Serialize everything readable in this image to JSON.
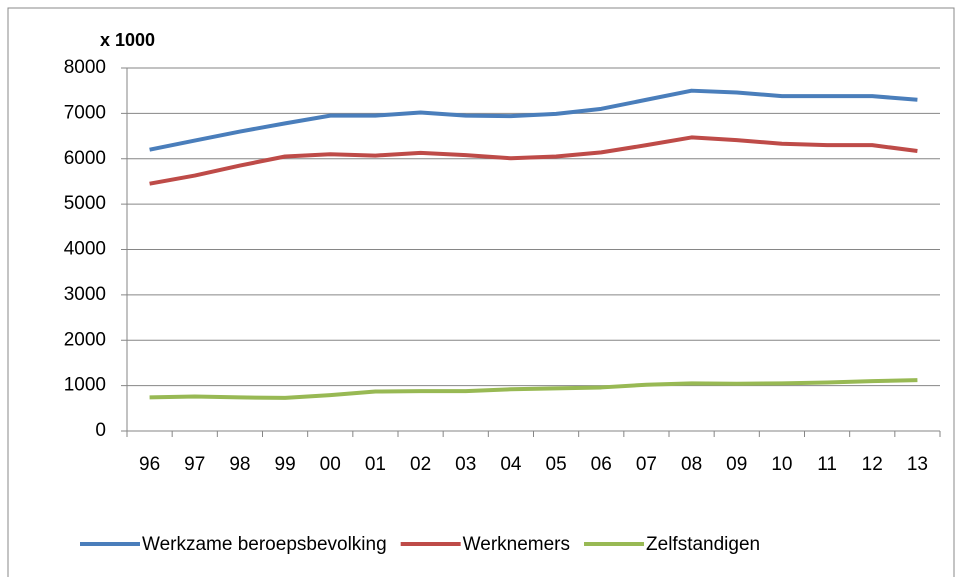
{
  "chart_data": {
    "type": "line",
    "y_unit_label": "x 1000",
    "categories": [
      "96",
      "97",
      "98",
      "99",
      "00",
      "01",
      "02",
      "03",
      "04",
      "05",
      "06",
      "07",
      "08",
      "09",
      "10",
      "11",
      "12",
      "13"
    ],
    "series": [
      {
        "name": "Werkzame beroepsbevolking",
        "color": "#4a7ebb",
        "values": [
          6200,
          6400,
          6600,
          6780,
          6950,
          6950,
          7020,
          6950,
          6940,
          6990,
          7100,
          7300,
          7500,
          7460,
          7380,
          7380,
          7380,
          7300
        ]
      },
      {
        "name": "Werknemers",
        "color": "#be4b48",
        "values": [
          5450,
          5630,
          5850,
          6050,
          6100,
          6070,
          6130,
          6080,
          6010,
          6050,
          6140,
          6300,
          6470,
          6410,
          6330,
          6300,
          6300,
          6170
        ]
      },
      {
        "name": "Zelfstandigen",
        "color": "#98b954",
        "values": [
          740,
          760,
          740,
          730,
          790,
          870,
          880,
          880,
          920,
          940,
          960,
          1020,
          1050,
          1040,
          1050,
          1070,
          1100,
          1120
        ]
      }
    ],
    "ylim": [
      0,
      8000
    ],
    "yticks": [
      0,
      1000,
      2000,
      3000,
      4000,
      5000,
      6000,
      7000,
      8000
    ],
    "grid": true,
    "legend": "bottom"
  }
}
